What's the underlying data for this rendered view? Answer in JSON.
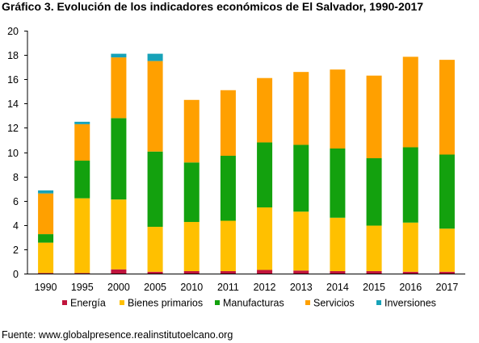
{
  "title": "Gráfico 3. Evolución de los indicadores económicos de El Salvador, 1990-2017",
  "source": "Fuente: www.globalpresence.realinstitutoelcano.org",
  "chart_data": {
    "type": "bar",
    "stacked": true,
    "title": "Gráfico 3. Evolución de los indicadores económicos de El Salvador, 1990-2017",
    "xlabel": "",
    "ylabel": "",
    "ylim": [
      0,
      20
    ],
    "yticks": [
      0,
      2,
      4,
      6,
      8,
      10,
      12,
      14,
      16,
      18,
      20
    ],
    "grid": false,
    "legend_position": "bottom",
    "categories": [
      "1990",
      "1995",
      "2000",
      "2005",
      "2010",
      "2011",
      "2012",
      "2013",
      "2014",
      "2015",
      "2016",
      "2017"
    ],
    "series": [
      {
        "name": "Energía",
        "color": "#c0143c",
        "values": [
          0.05,
          0.05,
          0.35,
          0.15,
          0.2,
          0.2,
          0.3,
          0.25,
          0.2,
          0.2,
          0.15,
          0.15
        ]
      },
      {
        "name": "Bienes primarios",
        "color": "#ffc000",
        "values": [
          2.5,
          6.15,
          5.75,
          3.7,
          4.05,
          4.15,
          5.15,
          4.85,
          4.4,
          3.75,
          4.05,
          3.55
        ]
      },
      {
        "name": "Manufacturas",
        "color": "#13a10e",
        "values": [
          0.7,
          3.1,
          6.7,
          6.2,
          4.9,
          5.35,
          5.35,
          5.5,
          5.7,
          5.55,
          6.2,
          6.1
        ]
      },
      {
        "name": "Servicios",
        "color": "#ffa000",
        "values": [
          3.35,
          3.0,
          5.0,
          7.45,
          5.15,
          5.4,
          5.3,
          6.0,
          6.5,
          6.8,
          7.45,
          7.8
        ]
      },
      {
        "name": "Inversiones",
        "color": "#17a2b8",
        "values": [
          0.25,
          0.2,
          0.3,
          0.6,
          0.0,
          0.0,
          0.0,
          0.0,
          0.0,
          0.0,
          0.0,
          0.0
        ]
      }
    ]
  }
}
